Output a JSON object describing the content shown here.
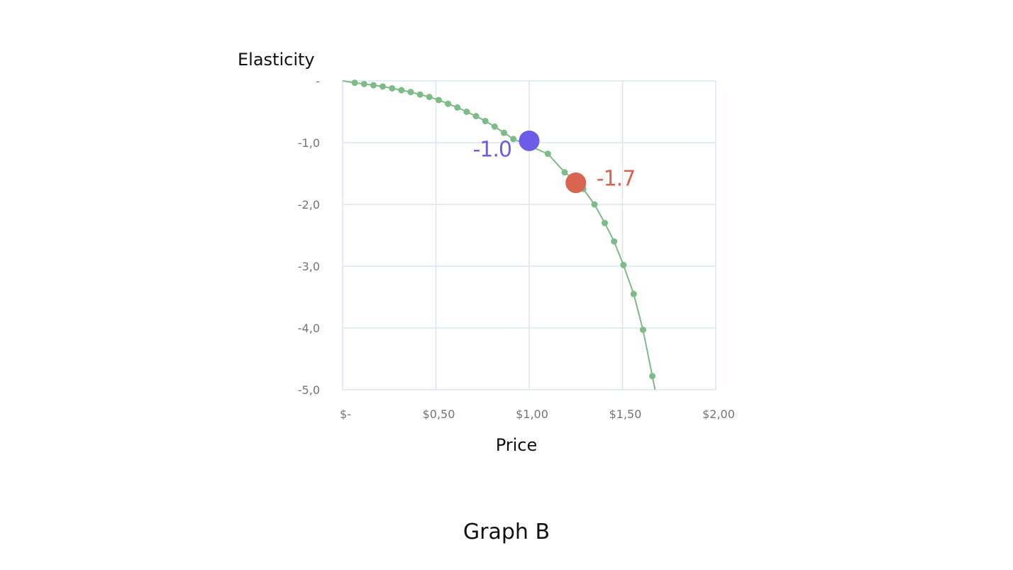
{
  "caption": "Graph B",
  "colors": {
    "grid": "#dce6f5",
    "curve": "#7dbb87",
    "marker_blue": "#6c5ce7",
    "marker_red": "#d9644f",
    "tick_text": "#757575"
  },
  "chart_data": {
    "type": "line",
    "title": "",
    "xlabel": "Price",
    "ylabel": "Elasticity",
    "xlim": [
      0,
      2
    ],
    "ylim": [
      -5,
      0
    ],
    "x_ticks": [
      {
        "value": 0,
        "label": "$-"
      },
      {
        "value": 0.5,
        "label": "$0,50"
      },
      {
        "value": 1,
        "label": "$1,00"
      },
      {
        "value": 1.5,
        "label": "$1,50"
      },
      {
        "value": 2,
        "label": "$2,00"
      }
    ],
    "y_ticks": [
      {
        "value": 0,
        "label": "-"
      },
      {
        "value": -1,
        "label": "-1,0"
      },
      {
        "value": -2,
        "label": "-2,0"
      },
      {
        "value": -3,
        "label": "-3,0"
      },
      {
        "value": -4,
        "label": "-4,0"
      },
      {
        "value": -5,
        "label": "-5,0"
      }
    ],
    "grid": true,
    "legend": "none",
    "series": [
      {
        "x": [
          0.0,
          0.065,
          0.115,
          0.165,
          0.215,
          0.265,
          0.315,
          0.365,
          0.415,
          0.465,
          0.515,
          0.565,
          0.615,
          0.665,
          0.715,
          0.765,
          0.815,
          0.865,
          0.915,
          1.1,
          1.19,
          1.25,
          1.29,
          1.35,
          1.405,
          1.455,
          1.505,
          1.56,
          1.61,
          1.66
        ],
        "y": [
          0.0,
          -0.03,
          -0.05,
          -0.07,
          -0.09,
          -0.12,
          -0.15,
          -0.18,
          -0.22,
          -0.26,
          -0.31,
          -0.37,
          -0.43,
          -0.5,
          -0.57,
          -0.65,
          -0.74,
          -0.84,
          -0.94,
          -1.18,
          -1.48,
          -1.62,
          -1.75,
          -2.0,
          -2.3,
          -2.6,
          -2.98,
          -3.45,
          -4.03,
          -4.78
        ]
      }
    ],
    "highlights": [
      {
        "x": 1.0,
        "y": -0.97,
        "label": "-1.0",
        "color": "#6c5ce7"
      },
      {
        "x": 1.25,
        "y": -1.65,
        "label": "-1.7",
        "color": "#d9644f"
      }
    ]
  }
}
